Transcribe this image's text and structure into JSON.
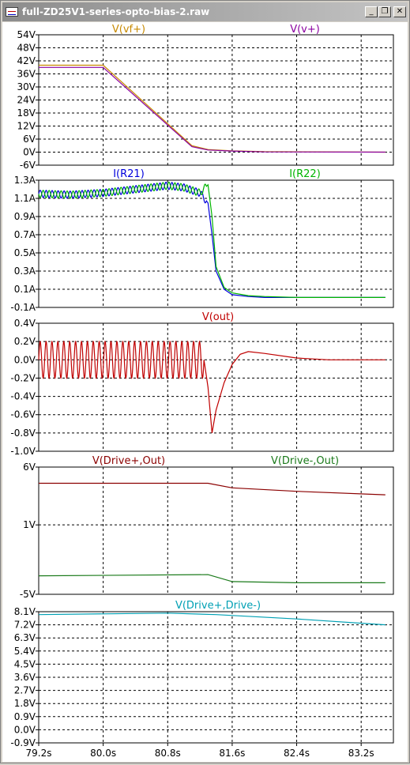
{
  "window": {
    "title": "full-ZD25V1-series-opto-bias-2.raw",
    "minimize_glyph": "_",
    "restore_glyph": "❐",
    "close_glyph": "✕"
  },
  "colors": {
    "frame_bg": "#d4d0c8",
    "plot_bg": "#ffffff",
    "grid": "#000000",
    "axis_text": "#000000"
  },
  "chart_data": [
    {
      "type": "line",
      "ylim": [
        -6,
        54
      ],
      "yticks": [
        54,
        48,
        42,
        36,
        30,
        24,
        18,
        12,
        6,
        0,
        -6
      ],
      "ytick_labels": [
        "54V",
        "48V",
        "42V",
        "36V",
        "30V",
        "24V",
        "18V",
        "12V",
        "6V",
        "0V",
        "-6V"
      ],
      "series": [
        {
          "name": "V(vf+)",
          "color": "#c88a00",
          "x": [
            79.2,
            80.0,
            81.1,
            81.3,
            81.6,
            82.0,
            83.5
          ],
          "values": [
            40.0,
            40.0,
            3.0,
            1.2,
            0.6,
            0.2,
            0.0
          ]
        },
        {
          "name": "V(v+)",
          "color": "#8a00a0",
          "x": [
            79.2,
            80.0,
            81.1,
            81.3,
            81.6,
            82.0,
            83.5
          ],
          "values": [
            39.0,
            39.0,
            2.5,
            1.0,
            0.5,
            0.1,
            0.0
          ]
        }
      ]
    },
    {
      "type": "line",
      "ylim": [
        -0.1,
        1.3
      ],
      "yticks": [
        1.3,
        1.1,
        0.9,
        0.7,
        0.5,
        0.3,
        0.1,
        -0.1
      ],
      "ytick_labels": [
        "1.3A",
        "1.1A",
        "0.9A",
        "0.7A",
        "0.5A",
        "0.3A",
        "0.1A",
        "-0.1A"
      ],
      "series": [
        {
          "name": "I(R21)",
          "color": "#0000dc",
          "x": [
            79.2,
            79.6,
            80.0,
            80.4,
            80.8,
            81.0,
            81.2,
            81.3,
            81.35,
            81.4,
            81.5,
            81.6,
            81.8,
            82.0,
            82.4,
            83.5
          ],
          "values": [
            1.15,
            1.14,
            1.16,
            1.2,
            1.24,
            1.22,
            1.16,
            1.05,
            0.7,
            0.3,
            0.1,
            0.04,
            0.02,
            0.01,
            0.01,
            0.01
          ]
        },
        {
          "name": "I(R22)",
          "color": "#00b400",
          "x": [
            79.2,
            79.6,
            80.0,
            80.4,
            80.8,
            81.0,
            81.2,
            81.3,
            81.35,
            81.4,
            81.5,
            81.6,
            81.8,
            82.0,
            82.4,
            83.5
          ],
          "values": [
            1.15,
            1.14,
            1.16,
            1.2,
            1.24,
            1.22,
            1.16,
            1.25,
            0.9,
            0.35,
            0.12,
            0.06,
            0.03,
            0.02,
            0.01,
            0.01
          ]
        }
      ]
    },
    {
      "type": "line",
      "ylim": [
        -1.0,
        0.4
      ],
      "yticks": [
        0.4,
        0.2,
        0.0,
        -0.2,
        -0.4,
        -0.6,
        -0.8,
        -1.0
      ],
      "ytick_labels": [
        "0.4V",
        "0.2V",
        "0.0V",
        "-0.2V",
        "-0.4V",
        "-0.6V",
        "-0.8V",
        "-1.0V"
      ],
      "series": [
        {
          "name": "V(out)",
          "color": "#c00000",
          "x": [
            79.2,
            81.25,
            81.3,
            81.35,
            81.4,
            81.5,
            81.6,
            81.7,
            81.8,
            82.0,
            82.4,
            82.8,
            83.5
          ],
          "values": [
            0.0,
            0.0,
            -0.3,
            -0.8,
            -0.55,
            -0.25,
            -0.05,
            0.06,
            0.09,
            0.07,
            0.02,
            0.0,
            0.0
          ],
          "oscillation": {
            "x_end": 81.25,
            "amplitude": 0.2,
            "cycles": 28
          }
        }
      ]
    },
    {
      "type": "line",
      "ylim": [
        -5,
        6
      ],
      "yticks": [
        6,
        1,
        -5
      ],
      "ytick_labels": [
        "6V",
        "1V",
        "-5V"
      ],
      "series": [
        {
          "name": "V(Drive+,Out)",
          "color": "#8b0000",
          "x": [
            79.2,
            81.3,
            81.6,
            82.4,
            83.5
          ],
          "values": [
            4.6,
            4.6,
            4.2,
            3.9,
            3.6
          ]
        },
        {
          "name": "V(Drive-,Out)",
          "color": "#1a7a1a",
          "x": [
            79.2,
            81.3,
            81.6,
            82.4,
            83.5
          ],
          "values": [
            -3.4,
            -3.3,
            -3.9,
            -4.0,
            -4.0
          ]
        }
      ]
    },
    {
      "type": "line",
      "ylim": [
        -0.9,
        8.1
      ],
      "yticks": [
        8.1,
        7.2,
        6.3,
        5.4,
        4.5,
        3.6,
        2.7,
        1.8,
        0.9,
        0.0,
        -0.9
      ],
      "ytick_labels": [
        "8.1V",
        "7.2V",
        "6.3V",
        "5.4V",
        "4.5V",
        "3.6V",
        "2.7V",
        "1.8V",
        "0.9V",
        "0.0V",
        "-0.9V"
      ],
      "xlim": [
        79.2,
        83.6
      ],
      "xticks": [
        79.2,
        80.0,
        80.8,
        81.6,
        82.4,
        83.2
      ],
      "xtick_labels": [
        "79.2s",
        "80.0s",
        "80.8s",
        "81.6s",
        "82.4s",
        "83.2s"
      ],
      "series": [
        {
          "name": "V(Drive+,Drive-)",
          "color": "#00a0b4",
          "x": [
            79.2,
            80.8,
            81.4,
            82.4,
            83.5
          ],
          "values": [
            7.9,
            8.0,
            7.9,
            7.6,
            7.2
          ]
        }
      ]
    }
  ]
}
